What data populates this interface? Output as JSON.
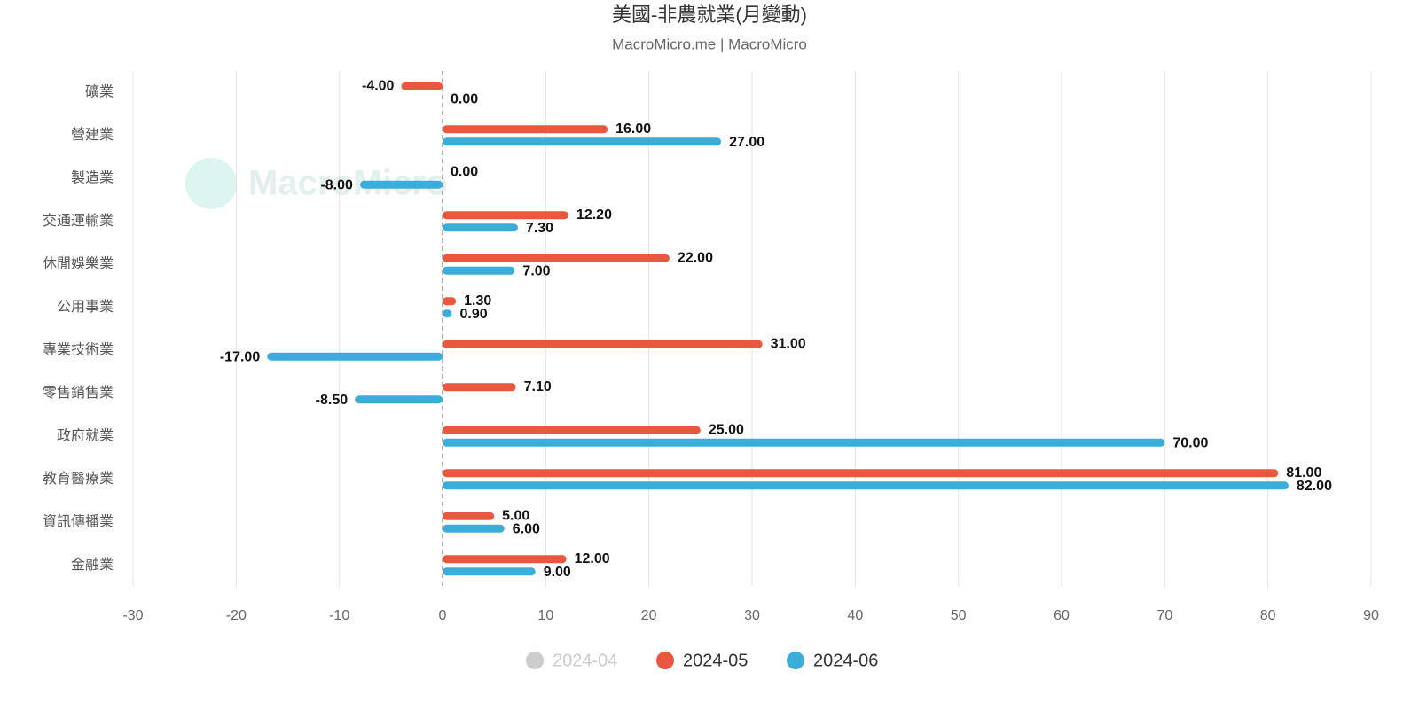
{
  "chart_data": {
    "type": "hbar",
    "title": "美國-非農就業(月變動)",
    "subtitle": "MacroMicro.me | MacroMicro",
    "watermark": "MacroMicro",
    "categories": [
      "礦業",
      "營建業",
      "製造業",
      "交通運輸業",
      "休閒娛樂業",
      "公用事業",
      "專業技術業",
      "零售銷售業",
      "政府就業",
      "教育醫療業",
      "資訊傳播業",
      "金融業"
    ],
    "series": [
      {
        "name": "2024-04",
        "color": "#cccccc",
        "visible": false,
        "values": [
          null,
          null,
          null,
          null,
          null,
          null,
          null,
          null,
          null,
          null,
          null,
          null
        ]
      },
      {
        "name": "2024-05",
        "color": "#e9573f",
        "visible": true,
        "values": [
          -4,
          16,
          0,
          12.2,
          22,
          1.3,
          31,
          7.1,
          25,
          81,
          5,
          12
        ],
        "value_labels": [
          "-4.00",
          "16.00",
          "0.00",
          "12.20",
          "22.00",
          "1.30",
          "31.00",
          "7.10",
          "25.00",
          "81.00",
          "5.00",
          "12.00"
        ]
      },
      {
        "name": "2024-06",
        "color": "#3badd9",
        "visible": true,
        "values": [
          0,
          27,
          -8,
          7.3,
          7,
          0.9,
          -17,
          -8.5,
          70,
          82,
          6,
          9
        ],
        "value_labels": [
          "0.00",
          "27.00",
          "-8.00",
          "7.30",
          "7.00",
          "0.90",
          "-17.00",
          "-8.50",
          "70.00",
          "82.00",
          "6.00",
          "9.00"
        ]
      }
    ],
    "xlim": [
      -30,
      90
    ],
    "xticks": [
      -30,
      -20,
      -10,
      0,
      10,
      20,
      30,
      40,
      50,
      60,
      70,
      80,
      90
    ],
    "grid": true
  }
}
